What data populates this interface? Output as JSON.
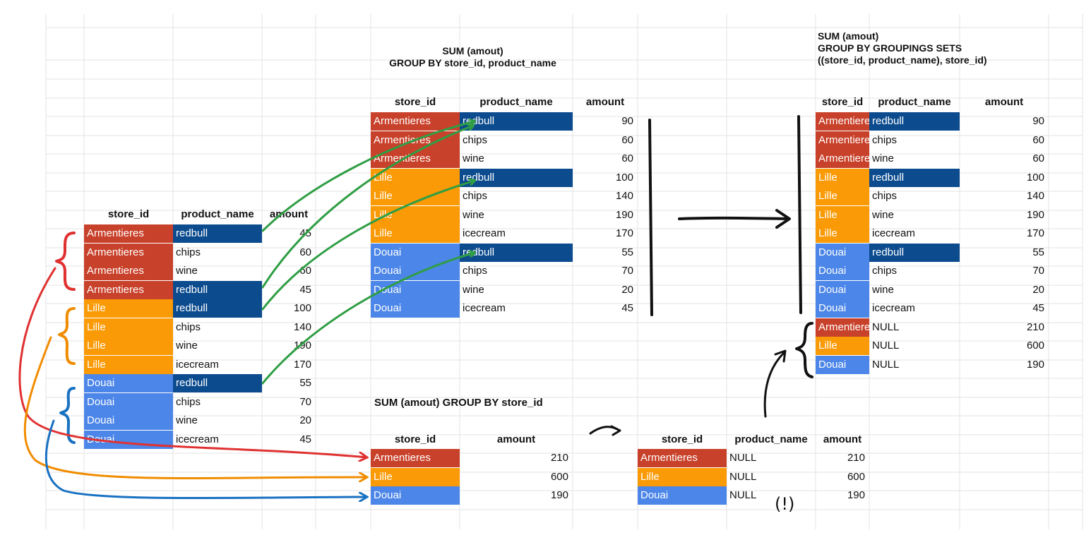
{
  "colors": {
    "armentieres": "#c8412a",
    "lille": "#f99a06",
    "douai": "#4c86e8",
    "redbull": "#0b4b8e",
    "arrow_green": "#2f9e44",
    "arrow_red": "#e03131",
    "arrow_orange": "#f08c00",
    "arrow_blue": "#1971c2",
    "marker_black": "#111111"
  },
  "source_table": {
    "headers": [
      "store_id",
      "product_name",
      "amount"
    ],
    "rows": [
      {
        "store_id": "Armentieres",
        "product_name": "redbull",
        "amount": "45"
      },
      {
        "store_id": "Armentieres",
        "product_name": "chips",
        "amount": "60"
      },
      {
        "store_id": "Armentieres",
        "product_name": "wine",
        "amount": "60"
      },
      {
        "store_id": "Armentieres",
        "product_name": "redbull",
        "amount": "45"
      },
      {
        "store_id": "Lille",
        "product_name": "redbull",
        "amount": "100"
      },
      {
        "store_id": "Lille",
        "product_name": "chips",
        "amount": "140"
      },
      {
        "store_id": "Lille",
        "product_name": "wine",
        "amount": "190"
      },
      {
        "store_id": "Lille",
        "product_name": "icecream",
        "amount": "170"
      },
      {
        "store_id": "Douai",
        "product_name": "redbull",
        "amount": "55"
      },
      {
        "store_id": "Douai",
        "product_name": "chips",
        "amount": "70"
      },
      {
        "store_id": "Douai",
        "product_name": "wine",
        "amount": "20"
      },
      {
        "store_id": "Douai",
        "product_name": "icecream",
        "amount": "45"
      }
    ]
  },
  "group_by_table": {
    "title_line1": "SUM (amout)",
    "title_line2": "GROUP BY store_id, product_name",
    "headers": [
      "store_id",
      "product_name",
      "amount"
    ],
    "rows": [
      {
        "store_id": "Armentieres",
        "product_name": "redbull",
        "amount": "90"
      },
      {
        "store_id": "Armentieres",
        "product_name": "chips",
        "amount": "60"
      },
      {
        "store_id": "Armentieres",
        "product_name": "wine",
        "amount": "60"
      },
      {
        "store_id": "Lille",
        "product_name": "redbull",
        "amount": "100"
      },
      {
        "store_id": "Lille",
        "product_name": "chips",
        "amount": "140"
      },
      {
        "store_id": "Lille",
        "product_name": "wine",
        "amount": "190"
      },
      {
        "store_id": "Lille",
        "product_name": "icecream",
        "amount": "170"
      },
      {
        "store_id": "Douai",
        "product_name": "redbull",
        "amount": "55"
      },
      {
        "store_id": "Douai",
        "product_name": "chips",
        "amount": "70"
      },
      {
        "store_id": "Douai",
        "product_name": "wine",
        "amount": "20"
      },
      {
        "store_id": "Douai",
        "product_name": "icecream",
        "amount": "45"
      }
    ]
  },
  "store_sum_table": {
    "title": "SUM (amout) GROUP BY store_id",
    "headers": [
      "store_id",
      "amount"
    ],
    "rows": [
      {
        "store_id": "Armentieres",
        "amount": "210"
      },
      {
        "store_id": "Lille",
        "amount": "600"
      },
      {
        "store_id": "Douai",
        "amount": "190"
      }
    ]
  },
  "null_table": {
    "headers": [
      "store_id",
      "product_name",
      "amount"
    ],
    "rows": [
      {
        "store_id": "Armentieres",
        "product_name": "NULL",
        "amount": "210"
      },
      {
        "store_id": "Lille",
        "product_name": "NULL",
        "amount": "600"
      },
      {
        "store_id": "Douai",
        "product_name": "NULL",
        "amount": "190"
      }
    ],
    "note": "(!)"
  },
  "grouping_sets_table": {
    "title_line1": "SUM (amout)",
    "title_line2": "GROUP BY GROUPINGS SETS",
    "title_line3": "((store_id, product_name), store_id)",
    "headers": [
      "store_id",
      "product_name",
      "amount"
    ],
    "rows": [
      {
        "store_id": "Armentieres",
        "product_name": "redbull",
        "amount": "90"
      },
      {
        "store_id": "Armentieres",
        "product_name": "chips",
        "amount": "60"
      },
      {
        "store_id": "Armentieres",
        "product_name": "wine",
        "amount": "60"
      },
      {
        "store_id": "Lille",
        "product_name": "redbull",
        "amount": "100"
      },
      {
        "store_id": "Lille",
        "product_name": "chips",
        "amount": "140"
      },
      {
        "store_id": "Lille",
        "product_name": "wine",
        "amount": "190"
      },
      {
        "store_id": "Lille",
        "product_name": "icecream",
        "amount": "170"
      },
      {
        "store_id": "Douai",
        "product_name": "redbull",
        "amount": "55"
      },
      {
        "store_id": "Douai",
        "product_name": "chips",
        "amount": "70"
      },
      {
        "store_id": "Douai",
        "product_name": "wine",
        "amount": "20"
      },
      {
        "store_id": "Douai",
        "product_name": "icecream",
        "amount": "45"
      },
      {
        "store_id": "Armentieres",
        "product_name": "NULL",
        "amount": "210"
      },
      {
        "store_id": "Lille",
        "product_name": "NULL",
        "amount": "600"
      },
      {
        "store_id": "Douai",
        "product_name": "NULL",
        "amount": "190"
      }
    ]
  }
}
